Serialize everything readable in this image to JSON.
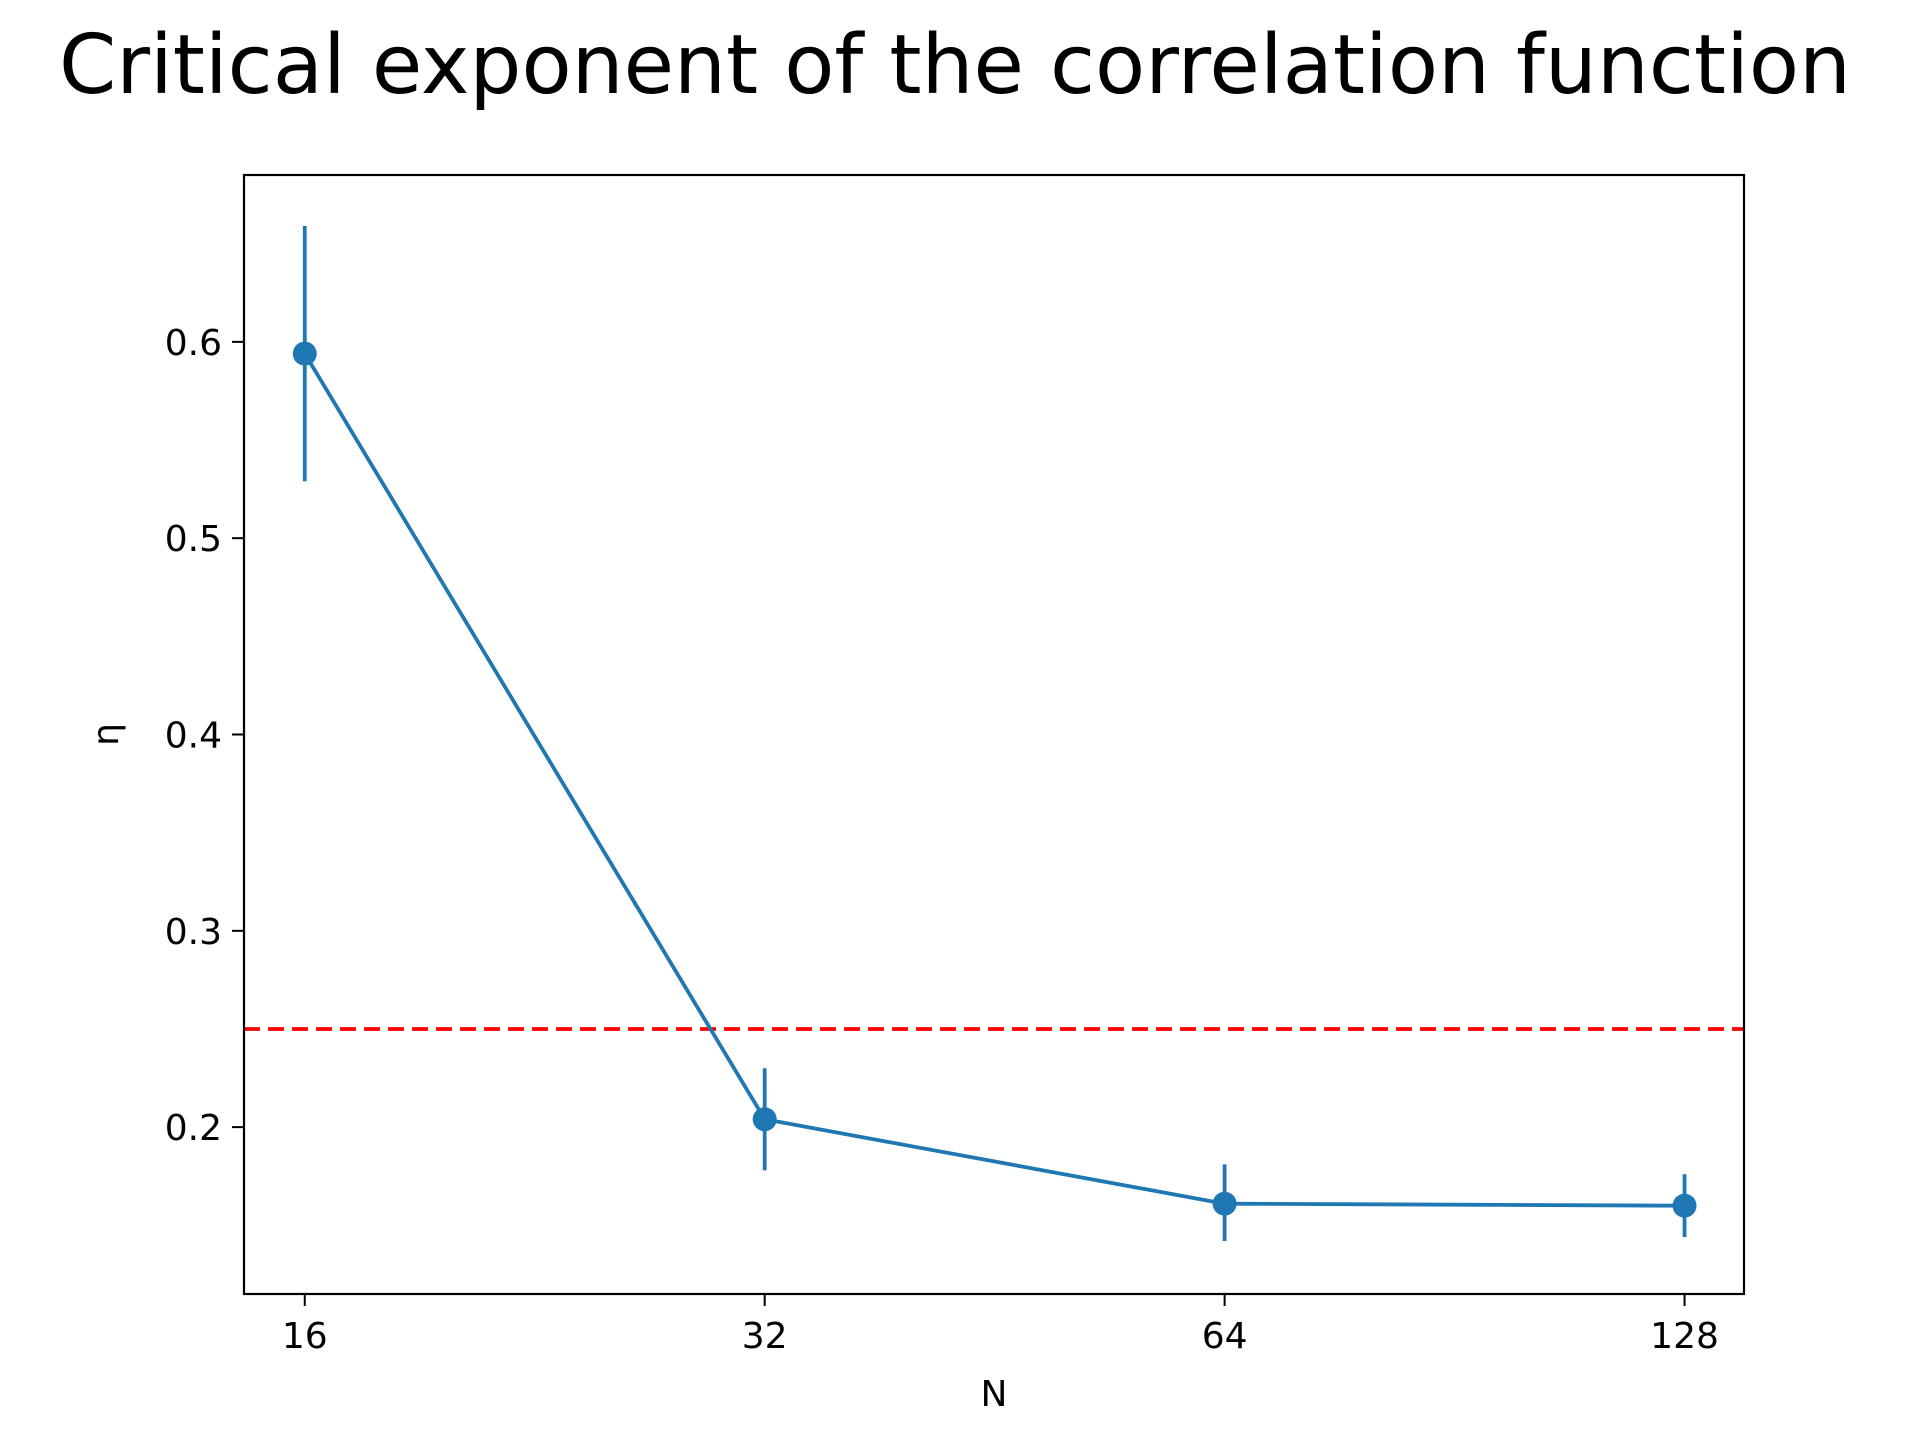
{
  "chart_data": {
    "type": "line",
    "title": "Critical exponent of the correlation function",
    "xlabel": "N",
    "ylabel": "η",
    "x_scale": "log2",
    "xlim": [
      14.6,
      140.0
    ],
    "ylim": [
      0.115,
      0.685
    ],
    "x_ticks": [
      16,
      32,
      64,
      128
    ],
    "x_tick_labels": [
      "16",
      "32",
      "64",
      "128"
    ],
    "y_ticks": [
      0.2,
      0.3,
      0.4,
      0.5,
      0.6
    ],
    "y_tick_labels": [
      "0.2",
      "0.3",
      "0.4",
      "0.5",
      "0.6"
    ],
    "grid": false,
    "legend": "none",
    "series": [
      {
        "x": [
          16,
          32,
          64,
          128
        ],
        "y": [
          0.594,
          0.204,
          0.161,
          0.16
        ],
        "error_low": [
          0.529,
          0.178,
          0.142,
          0.144
        ],
        "error_high": [
          0.659,
          0.23,
          0.181,
          0.176
        ],
        "color": "#1f77b4"
      }
    ],
    "reference_line": {
      "y": 0.25,
      "style": "dashed",
      "color": "#ff0000"
    }
  }
}
